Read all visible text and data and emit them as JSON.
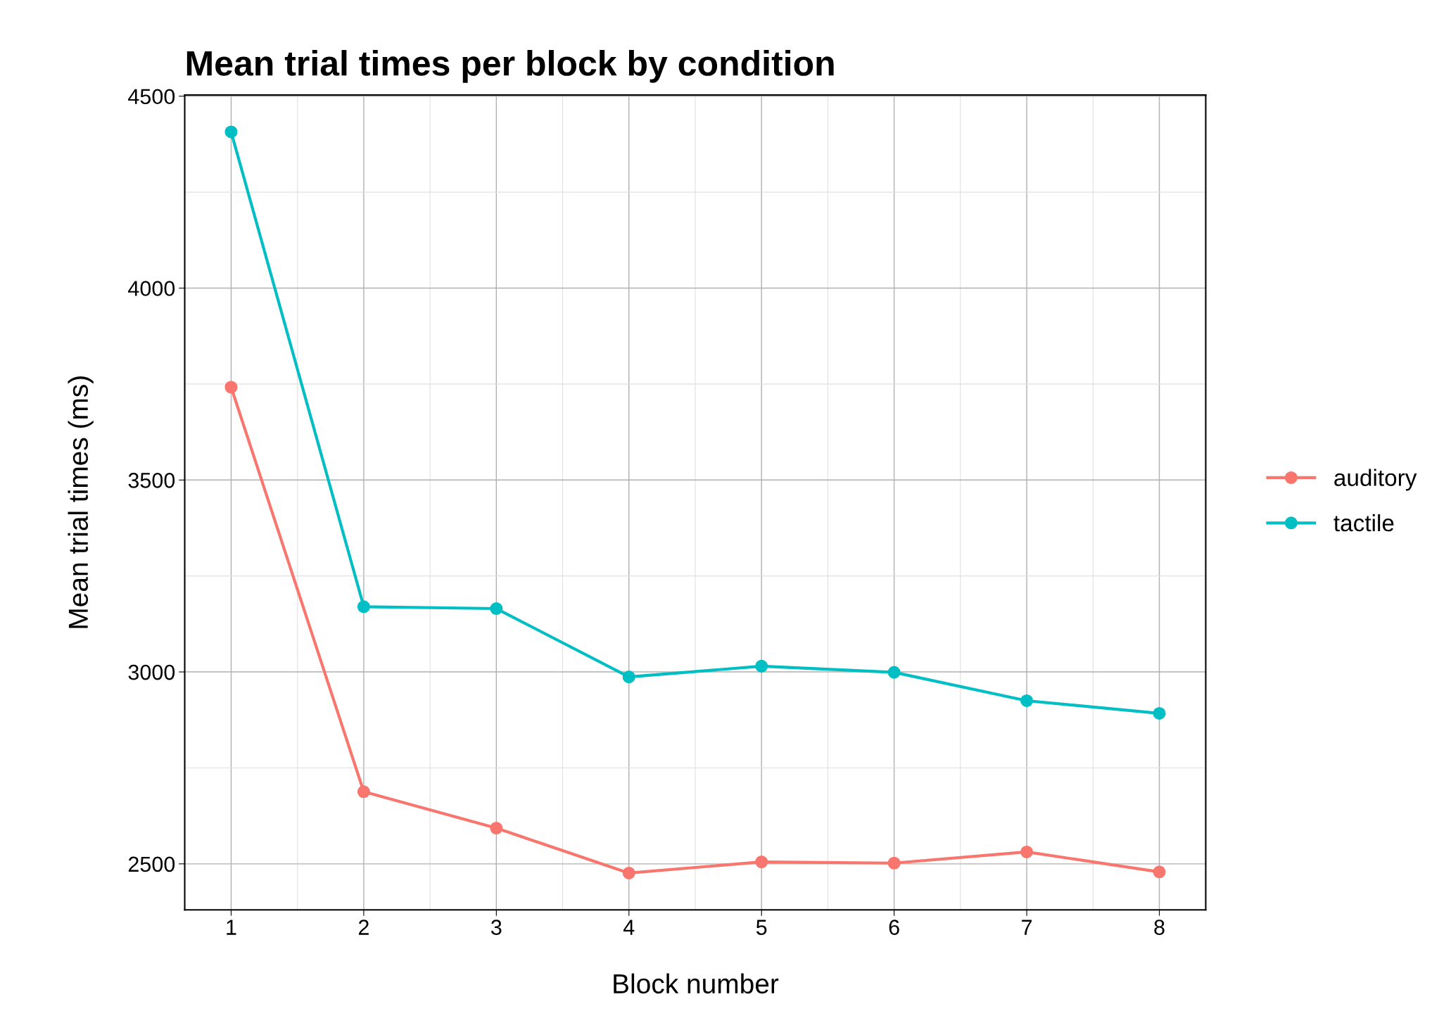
{
  "chart_data": {
    "type": "line",
    "title": "Mean trial times per block by condition",
    "xlabel": "Block number",
    "ylabel": "Mean trial times (ms)",
    "x": [
      1,
      2,
      3,
      4,
      5,
      6,
      7,
      8
    ],
    "series": [
      {
        "name": "auditory",
        "color": "#f8766d",
        "values": [
          3742,
          2688,
          2593,
          2476,
          2505,
          2502,
          2531,
          2479
        ]
      },
      {
        "name": "tactile",
        "color": "#00bfc4",
        "values": [
          4407,
          3170,
          3165,
          2987,
          3015,
          2999,
          2925,
          2892
        ]
      }
    ],
    "xlim": [
      0.65,
      8.35
    ],
    "xticks": [
      1,
      2,
      3,
      4,
      5,
      6,
      7,
      8
    ],
    "ylim": [
      2380,
      4503
    ],
    "yticks": [
      2500,
      3000,
      3500,
      4000,
      4500
    ],
    "grid": true,
    "legend": "right",
    "marker": "circle",
    "line_style": "solid"
  }
}
